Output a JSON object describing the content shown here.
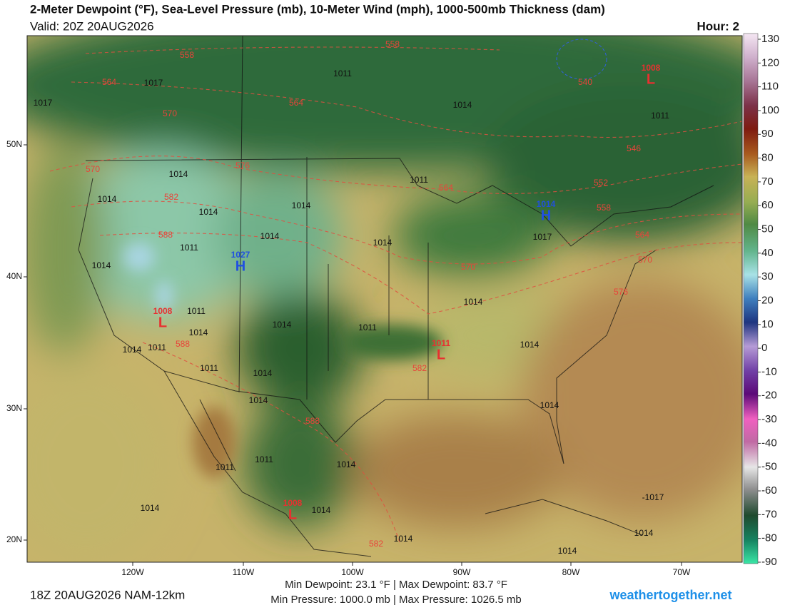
{
  "header": {
    "title": "2-Meter Dewpoint (°F), Sea-Level Pressure (mb), 10-Meter Wind (mph), 1000-500mb Thickness (dam)",
    "valid": "Valid: 20Z 20AUG2026",
    "hour": "Hour: 2"
  },
  "map": {
    "lat_labels": [
      "50N",
      "40N",
      "30N",
      "20N"
    ],
    "lon_labels": [
      "120W",
      "110W",
      "100W",
      "90W",
      "80W",
      "70W"
    ],
    "pressure_labels": [
      "1017",
      "1017",
      "1011",
      "1014",
      "1011",
      "1014",
      "1014",
      "1014",
      "1014",
      "1011",
      "1014",
      "1011",
      "1014",
      "1014",
      "1014",
      "1011",
      "1014",
      "1014",
      "1011",
      "1011",
      "1014",
      "1014",
      "1011",
      "1014",
      "1014",
      "1014",
      "1011",
      "1011",
      "1014",
      "1014",
      "1014",
      "1014",
      "1014",
      "1014",
      "-1017",
      "1017"
    ],
    "thickness_labels": [
      "558",
      "558",
      "564",
      "564",
      "570",
      "570",
      "576",
      "582",
      "588",
      "546",
      "552",
      "558",
      "564",
      "570",
      "576",
      "564",
      "570",
      "582",
      "588",
      "588",
      "582",
      "540"
    ],
    "centers": [
      {
        "letter": "H",
        "value": "1027"
      },
      {
        "letter": "H",
        "value": "1014"
      },
      {
        "letter": "L",
        "value": "1011"
      },
      {
        "letter": "L",
        "value": "1008"
      },
      {
        "letter": "L",
        "value": "1008"
      },
      {
        "letter": "L",
        "value": "1008"
      }
    ]
  },
  "colorbar": {
    "range": [
      -90,
      130
    ],
    "ticks": [
      130,
      120,
      110,
      100,
      90,
      80,
      70,
      60,
      50,
      40,
      30,
      20,
      10,
      0,
      -10,
      -20,
      -30,
      -40,
      -50,
      -60,
      -70,
      -80,
      -90
    ]
  },
  "footer": {
    "run": "18Z 20AUG2026 NAM-12km",
    "dewpoint_stats": "Min Dewpoint:  23.1 °F | Max Dewpoint:  83.7 °F",
    "pressure_stats": "Min Pressure: 1000.0 mb | Max Pressure: 1026.5 mb",
    "brand": "weathertogether.net"
  }
}
